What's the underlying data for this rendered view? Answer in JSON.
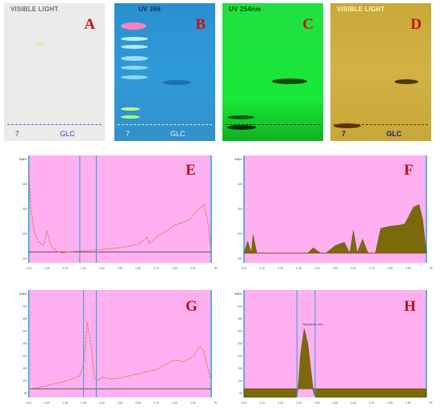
{
  "plates": [
    {
      "letter": "A",
      "title": "VISIBLE LIGHT",
      "lanes": [
        "7",
        "GLC"
      ],
      "bg": "#ebebea",
      "title_color": "#707070",
      "lane_color": "#3a4aa0"
    },
    {
      "letter": "B",
      "title": "UV 366",
      "lanes": [
        "7",
        "GLC"
      ],
      "bg": "#2a8fcf",
      "title_color": "#1a2a50",
      "lane_color": "#e0f0ff"
    },
    {
      "letter": "C",
      "title": "UV 254nm",
      "lanes": [
        "",
        ""
      ],
      "bg": "#19e03a",
      "title_color": "#0a4a10",
      "lane_color": "#0a4a10"
    },
    {
      "letter": "D",
      "title": "VISIBLE LIGHT",
      "lanes": [
        "7",
        "GLC"
      ],
      "bg": "#cfae3a",
      "title_color": "#fff6c0",
      "lane_color": "#10207a"
    }
  ],
  "charts": [
    {
      "letter": "E",
      "unit": "AU",
      "type": "line",
      "xlim": [
        0,
        1
      ],
      "ylim": [
        0,
        500
      ],
      "yticks": [
        "500",
        "400",
        "300",
        "200",
        "100"
      ],
      "xlabel_unit": "Rf",
      "style": "line",
      "baseline": 50,
      "x": [
        0,
        0.01,
        0.03,
        0.05,
        0.08,
        0.1,
        0.12,
        0.15,
        0.18,
        0.22,
        0.3,
        0.4,
        0.5,
        0.6,
        0.65,
        0.66,
        0.7,
        0.75,
        0.8,
        0.85,
        0.88,
        0.9,
        0.93,
        0.96,
        0.98,
        1.0
      ],
      "y": [
        440,
        260,
        150,
        100,
        80,
        150,
        80,
        55,
        45,
        50,
        55,
        62,
        70,
        85,
        120,
        90,
        120,
        145,
        175,
        190,
        200,
        220,
        250,
        270,
        200,
        60
      ]
    },
    {
      "letter": "F",
      "unit": "AU",
      "type": "area",
      "xlim": [
        0,
        1
      ],
      "ylim": [
        0,
        500
      ],
      "yticks": [
        "500",
        "400",
        "300",
        "200",
        "100"
      ],
      "xlabel_unit": "Rf",
      "style": "area",
      "baseline": 45,
      "x": [
        0,
        0.02,
        0.04,
        0.05,
        0.07,
        0.1,
        0.12,
        0.15,
        0.2,
        0.3,
        0.35,
        0.38,
        0.42,
        0.45,
        0.5,
        0.55,
        0.58,
        0.6,
        0.62,
        0.65,
        0.68,
        0.72,
        0.75,
        0.8,
        0.85,
        0.88,
        0.9,
        0.93,
        0.96,
        0.98,
        1.0
      ],
      "y": [
        45,
        100,
        45,
        130,
        45,
        45,
        45,
        45,
        45,
        45,
        45,
        70,
        45,
        45,
        80,
        95,
        45,
        150,
        45,
        110,
        45,
        45,
        160,
        170,
        175,
        180,
        210,
        260,
        270,
        200,
        45
      ]
    },
    {
      "letter": "G",
      "unit": "AU",
      "type": "line",
      "xlim": [
        0,
        1
      ],
      "ylim": [
        0,
        500
      ],
      "yticks": [
        "500",
        "400",
        "350",
        "300",
        "250",
        "200",
        "150",
        "100",
        "50"
      ],
      "xlabel_unit": "Rf",
      "style": "line",
      "baseline": 40,
      "x": [
        0,
        0.05,
        0.1,
        0.2,
        0.28,
        0.3,
        0.32,
        0.34,
        0.36,
        0.38,
        0.4,
        0.45,
        0.5,
        0.6,
        0.7,
        0.8,
        0.85,
        0.9,
        0.94,
        0.96,
        0.98,
        1.0
      ],
      "y": [
        40,
        45,
        55,
        75,
        100,
        150,
        350,
        250,
        90,
        80,
        95,
        85,
        90,
        110,
        130,
        175,
        165,
        190,
        240,
        210,
        140,
        80
      ]
    },
    {
      "letter": "H",
      "unit": "AU",
      "type": "area",
      "xlim": [
        0,
        1
      ],
      "ylim": [
        0,
        500
      ],
      "yticks": [
        "500",
        "400",
        "350",
        "300",
        "250",
        "200",
        "150",
        "100",
        "50"
      ],
      "xlabel_unit": "Rf",
      "style": "area",
      "baseline": 40,
      "x": [
        0,
        0.29,
        0.3,
        0.31,
        0.33,
        0.35,
        0.37,
        0.38,
        0.39,
        1.0
      ],
      "y": [
        0,
        0,
        80,
        200,
        320,
        250,
        100,
        30,
        0,
        0
      ],
      "annotation": "Glycyrrhizic acid"
    }
  ],
  "xticks": [
    "0.00",
    "0.10",
    "0.20",
    "0.30",
    "0.40",
    "0.50",
    "0.60",
    "0.70",
    "0.80",
    "0.90"
  ]
}
